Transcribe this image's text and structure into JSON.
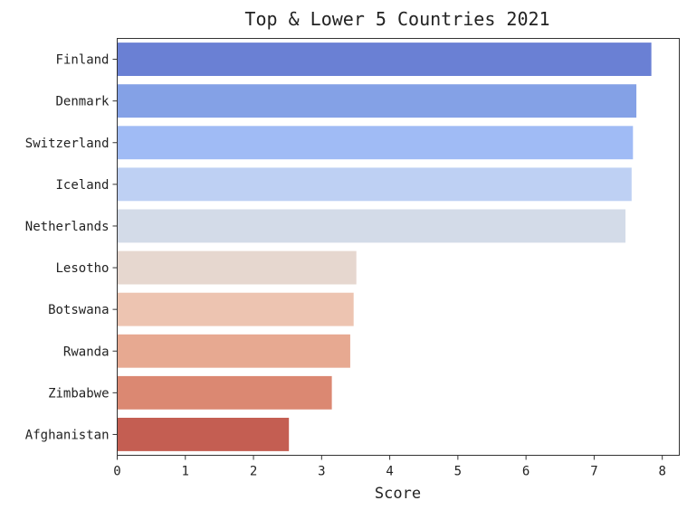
{
  "chart_data": {
    "type": "bar",
    "orientation": "horizontal",
    "title": "Top & Lower 5 Countries 2021",
    "xlabel": "Score",
    "ylabel": "",
    "xlim": [
      0,
      8.25
    ],
    "xticks": [
      "0",
      "1",
      "2",
      "3",
      "4",
      "5",
      "6",
      "7",
      "8"
    ],
    "grid": false,
    "categories": [
      "Finland",
      "Denmark",
      "Switzerland",
      "Iceland",
      "Netherlands",
      "Lesotho",
      "Botswana",
      "Rwanda",
      "Zimbabwe",
      "Afghanistan"
    ],
    "values": [
      7.84,
      7.62,
      7.57,
      7.55,
      7.46,
      3.51,
      3.47,
      3.42,
      3.15,
      2.52
    ],
    "colors": [
      "#6a80d4",
      "#84a1e6",
      "#a0bbf5",
      "#bed0f3",
      "#d3dbe8",
      "#e6d7cf",
      "#edc4b1",
      "#e7a991",
      "#db8872",
      "#c45e52"
    ]
  }
}
